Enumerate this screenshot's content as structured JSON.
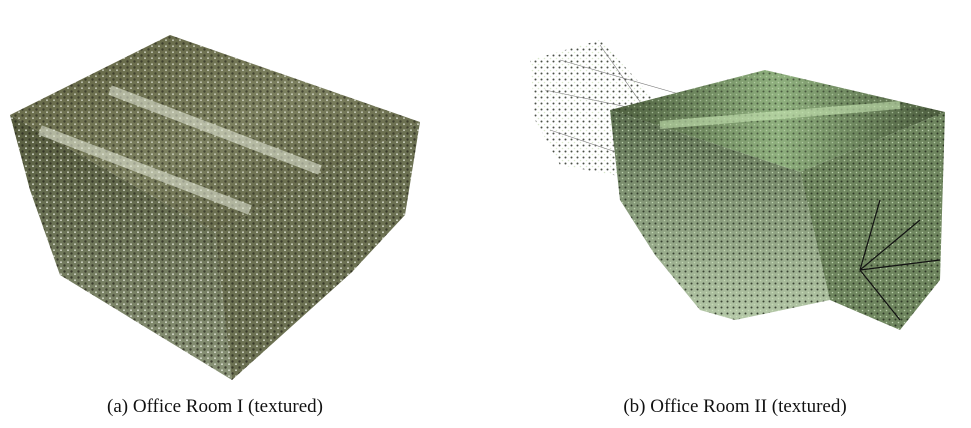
{
  "figure": {
    "panels": [
      {
        "caption": "(a) Office Room I (textured)"
      },
      {
        "caption": "(b) Office Room II (textured)"
      }
    ]
  }
}
